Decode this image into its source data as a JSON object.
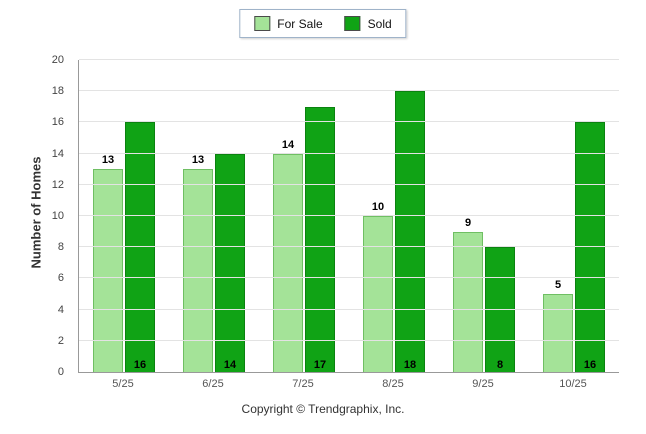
{
  "legend": {
    "items": [
      {
        "label": "For Sale",
        "color": "#a4e398",
        "border": "#6fbf63"
      },
      {
        "label": "Sold",
        "color": "#10a315",
        "border": "#0b8210"
      }
    ]
  },
  "chart_data": {
    "type": "bar",
    "categories": [
      "5/25",
      "6/25",
      "7/25",
      "8/25",
      "9/25",
      "10/25"
    ],
    "series": [
      {
        "name": "For Sale",
        "values": [
          13,
          13,
          14,
          10,
          9,
          5
        ],
        "color": "#a4e398",
        "border": "#6fbf63",
        "label_position": "above"
      },
      {
        "name": "Sold",
        "values": [
          16,
          14,
          17,
          18,
          8,
          16
        ],
        "color": "#10a315",
        "border": "#0b8210",
        "label_position": "bottom"
      }
    ],
    "title": "",
    "xlabel": "",
    "ylabel": "Number of Homes",
    "ylim": [
      0,
      20
    ],
    "yticks": [
      0,
      2,
      4,
      6,
      8,
      10,
      12,
      14,
      16,
      18,
      20
    ],
    "grid": true,
    "legend_position": "top"
  },
  "footer": {
    "copyright": "Copyright © Trendgraphix, Inc."
  }
}
